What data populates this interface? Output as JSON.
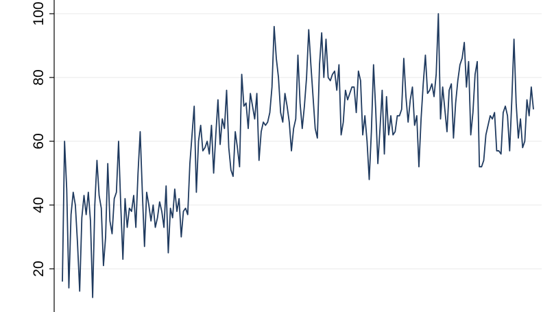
{
  "chart_data": {
    "type": "line",
    "title": "",
    "xlabel": "",
    "ylabel": "",
    "ylim": [
      10,
      100
    ],
    "yticks": [
      20,
      40,
      60,
      80,
      100
    ],
    "grid": true,
    "legend": "none",
    "line_color": "#1f3a5f",
    "series": [
      {
        "values": [
          16,
          60,
          45,
          14,
          37,
          44,
          40,
          28,
          13,
          36,
          43,
          37,
          44,
          35,
          11,
          40,
          54,
          43,
          39,
          21,
          30,
          53,
          35,
          31,
          42,
          44,
          60,
          40,
          23,
          42,
          33,
          39,
          38,
          43,
          33,
          50,
          63,
          44,
          27,
          44,
          40,
          35,
          40,
          33,
          36,
          41,
          38,
          33,
          46,
          25,
          39,
          36,
          45,
          38,
          42,
          30,
          38,
          39,
          37,
          53,
          62,
          71,
          44,
          60,
          65,
          57,
          58,
          60,
          56,
          65,
          50,
          62,
          73,
          59,
          67,
          64,
          76,
          58,
          51,
          49,
          63,
          58,
          52,
          81,
          71,
          72,
          64,
          75,
          71,
          67,
          75,
          54,
          63,
          66,
          65,
          66,
          69,
          77,
          96,
          86,
          80,
          69,
          66,
          75,
          71,
          66,
          57,
          64,
          67,
          87,
          72,
          64,
          71,
          80,
          95,
          84,
          74,
          64,
          61,
          84,
          94,
          80,
          92,
          80,
          79,
          81,
          82,
          76,
          84,
          62,
          66,
          76,
          73,
          75,
          77,
          77,
          69,
          82,
          79,
          62,
          68,
          60,
          48,
          63,
          84,
          70,
          53,
          64,
          76,
          56,
          74,
          62,
          68,
          62,
          63,
          68,
          68,
          70,
          86,
          74,
          66,
          73,
          77,
          65,
          68,
          52,
          67,
          78,
          87,
          75,
          76,
          78,
          74,
          81,
          100,
          67,
          77,
          70,
          63,
          76,
          78,
          61,
          72,
          79,
          84,
          86,
          91,
          77,
          85,
          62,
          69,
          81,
          85,
          52,
          52,
          54,
          62,
          65,
          68,
          67,
          69,
          57,
          57,
          56,
          69,
          71,
          68,
          57,
          73,
          92,
          72,
          61,
          67,
          58,
          60,
          73,
          68,
          77,
          70
        ]
      }
    ]
  }
}
